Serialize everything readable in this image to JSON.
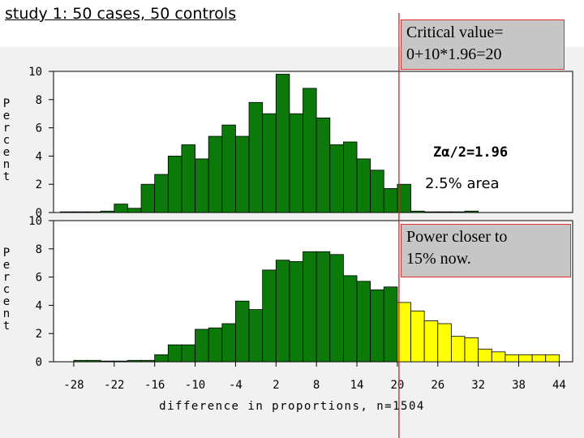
{
  "slide": {
    "title": "study 1: 50 cases, 50 controls"
  },
  "callouts": {
    "critical_line1": "Critical value=",
    "critical_line2": "0+10*1.96=20",
    "power_line1": "Power closer to",
    "power_line2": "15% now."
  },
  "annotations": {
    "z_label": "Zα/2=1.96",
    "area_label": "2.5% area"
  },
  "chart_data": [
    {
      "type": "bar",
      "name": "null-distribution",
      "ylabel": "Percent",
      "ylim": [
        0,
        10
      ],
      "yticks": [
        0,
        2,
        4,
        6,
        8,
        10
      ],
      "bin_width": 2,
      "bin_starts": [
        -30,
        -28,
        -26,
        -24,
        -22,
        -20,
        -18,
        -16,
        -14,
        -12,
        -10,
        -8,
        -6,
        -4,
        -2,
        0,
        2,
        4,
        6,
        8,
        10,
        12,
        14,
        16,
        18,
        20,
        22,
        24,
        26,
        28,
        30
      ],
      "values": [
        0.05,
        0.05,
        0.05,
        0.1,
        0.6,
        0.3,
        2.0,
        2.7,
        4.0,
        4.8,
        3.8,
        5.4,
        6.2,
        5.4,
        7.8,
        7.0,
        9.8,
        7.0,
        8.8,
        6.7,
        4.8,
        5.0,
        3.8,
        3.0,
        1.7,
        2.0,
        0.1,
        0.05,
        0.05,
        0.05,
        0.1
      ],
      "grid": false,
      "colors": {
        "bar_fill": "#0b7a0b",
        "bar_stroke": "#000000"
      }
    },
    {
      "type": "bar",
      "name": "alternative-distribution",
      "ylabel": "Percent",
      "ylim": [
        0,
        10
      ],
      "yticks": [
        0,
        2,
        4,
        6,
        8,
        10
      ],
      "xlabel": "difference in proportions, n=1504",
      "xticks": [
        -28,
        -22,
        -16,
        -10,
        -4,
        2,
        8,
        14,
        20,
        26,
        32,
        38,
        44
      ],
      "bin_width": 2,
      "bin_starts": [
        -28,
        -26,
        -24,
        -22,
        -20,
        -18,
        -16,
        -14,
        -12,
        -10,
        -8,
        -6,
        -4,
        -2,
        0,
        2,
        4,
        6,
        8,
        10,
        12,
        14,
        16,
        18,
        20,
        22,
        24,
        26,
        28,
        30,
        32,
        34,
        36,
        38,
        40,
        42
      ],
      "values": [
        0.1,
        0.1,
        0.05,
        0.05,
        0.1,
        0.1,
        0.5,
        1.2,
        1.2,
        2.3,
        2.4,
        2.7,
        4.3,
        3.7,
        6.5,
        7.2,
        7.1,
        7.8,
        7.8,
        7.6,
        6.1,
        5.7,
        5.1,
        5.3,
        4.2,
        3.6,
        2.9,
        2.7,
        1.8,
        1.7,
        0.9,
        0.7,
        0.5,
        0.5,
        0.5,
        0.5
      ],
      "critical_value": 20,
      "grid": false,
      "colors": {
        "bar_fill": "#0b7a0b",
        "tail_fill": "#ffff00",
        "bar_stroke": "#000000"
      }
    }
  ],
  "colors": {
    "critical_line": "#d32020",
    "callout_bg": "#c6c6c6",
    "callout_border": "#e03030"
  }
}
